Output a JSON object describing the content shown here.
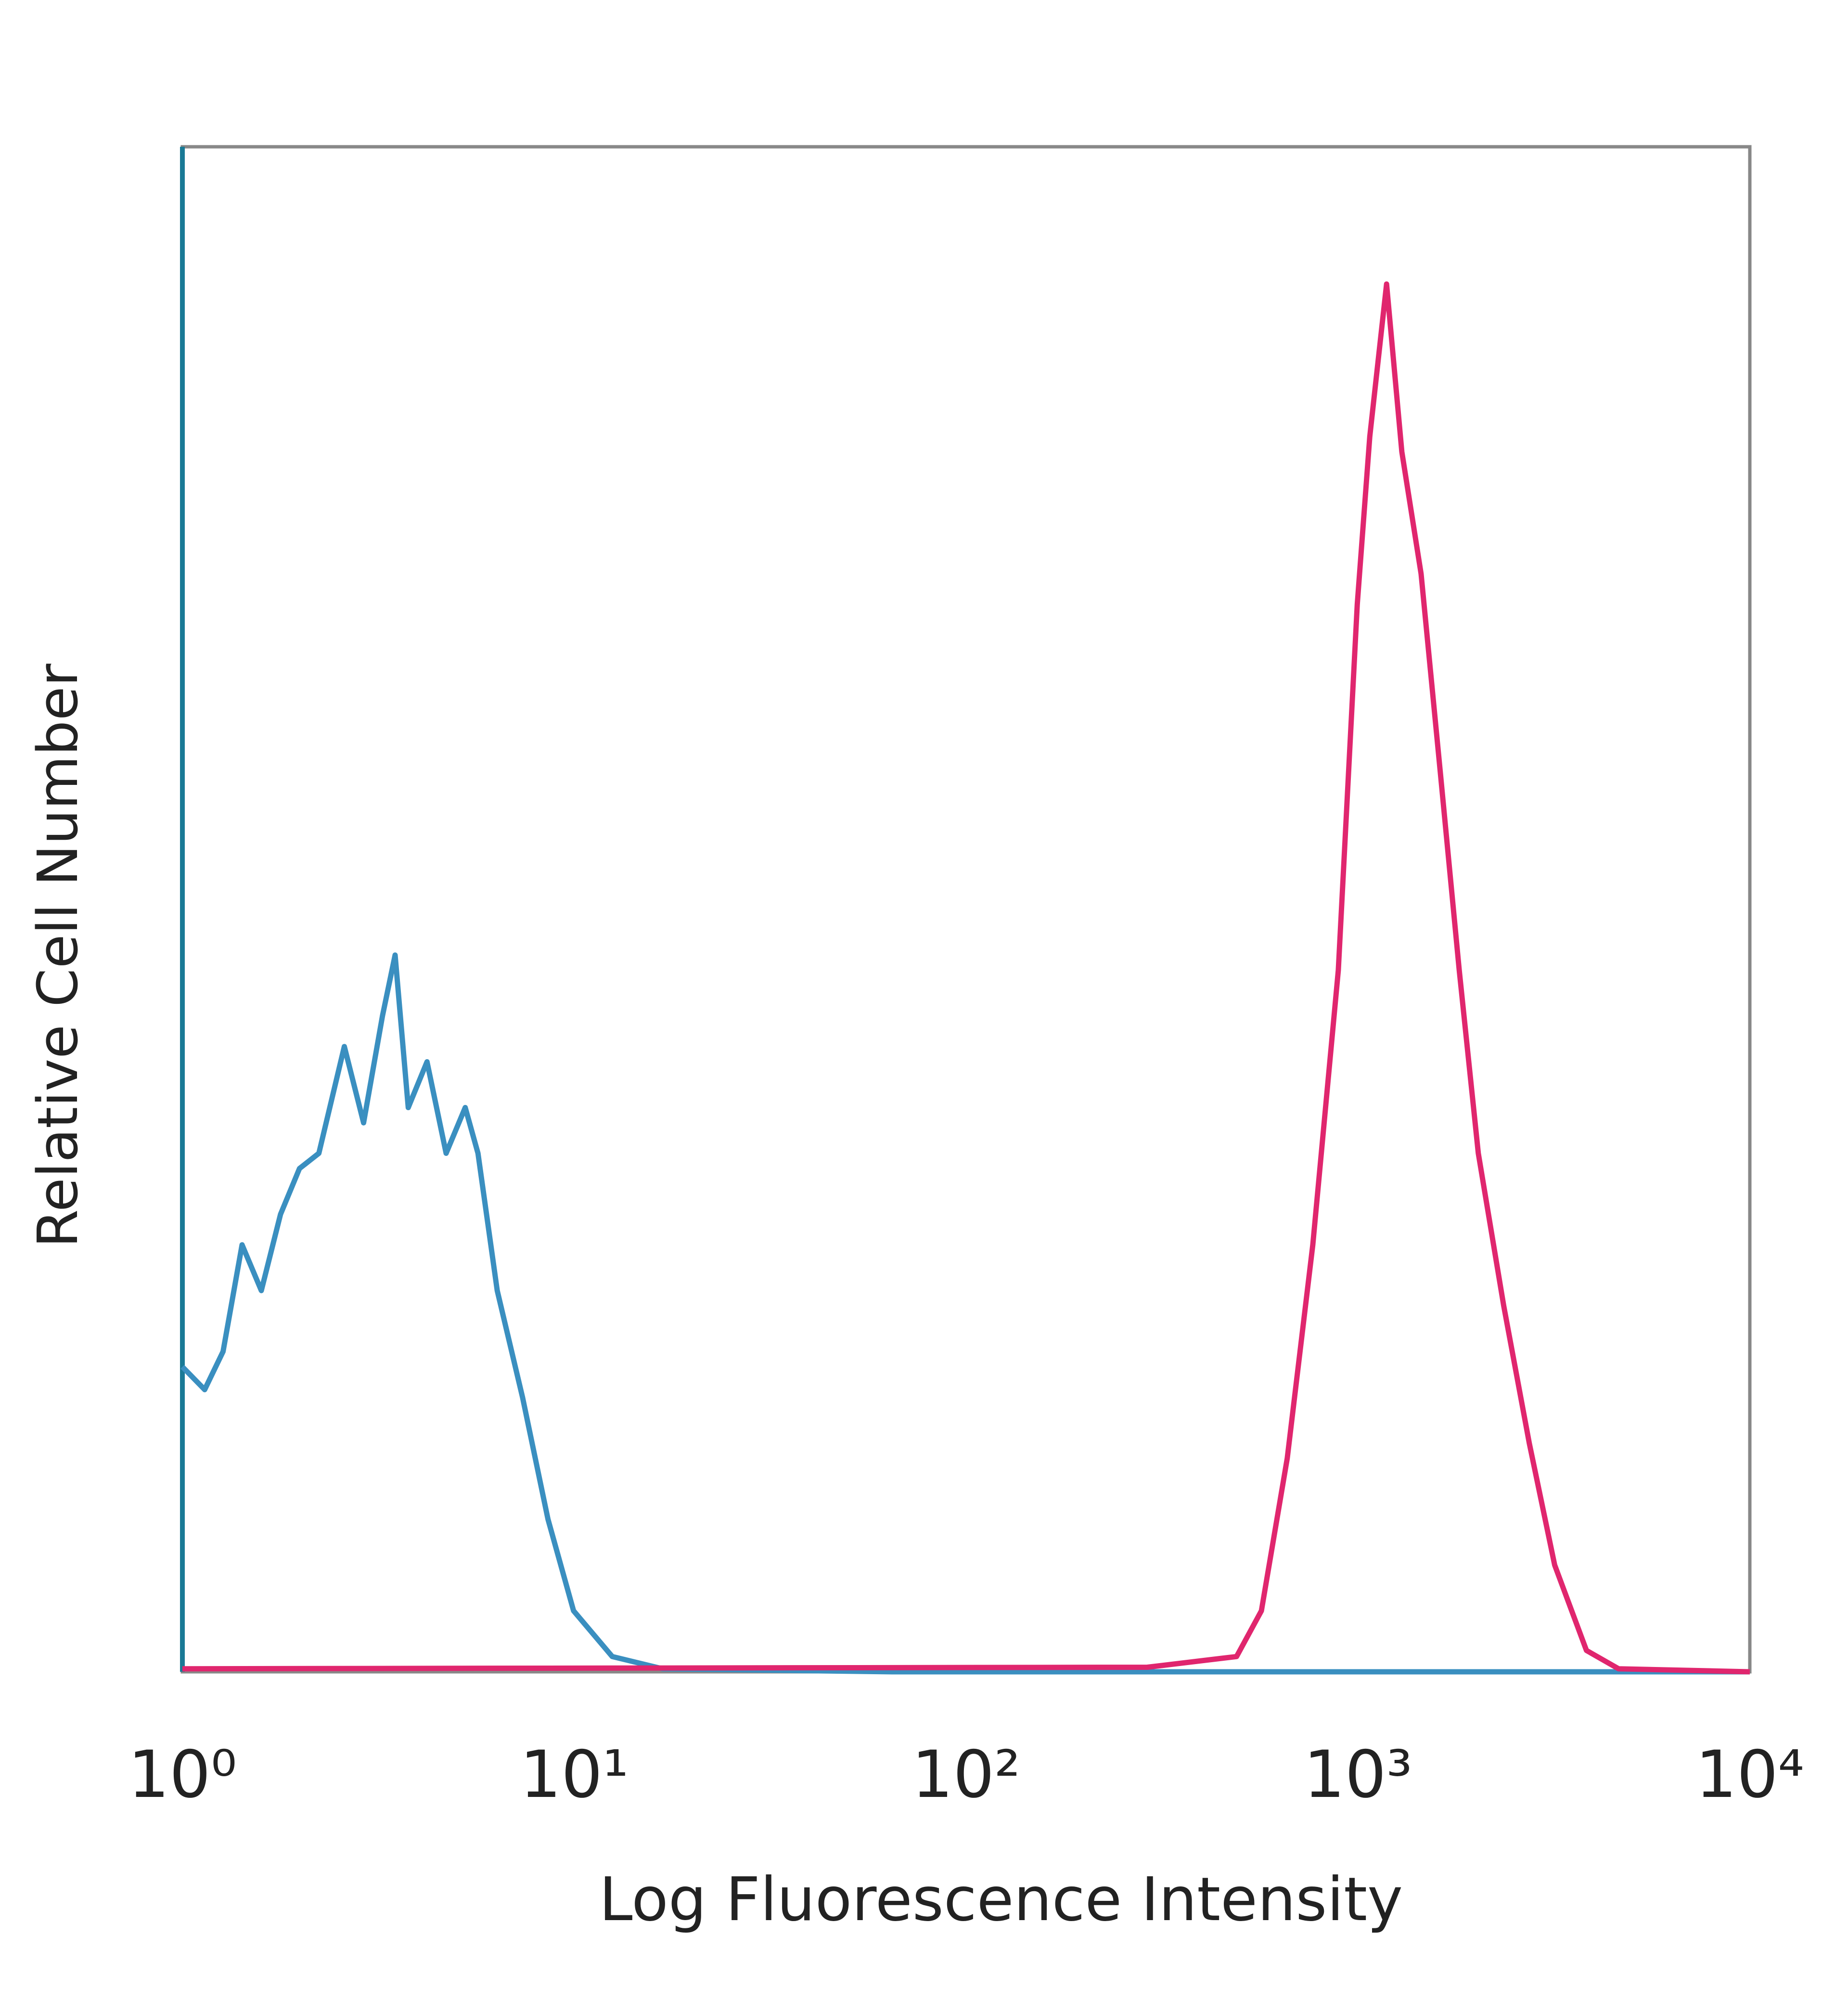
{
  "chart_data": {
    "type": "line",
    "xlabel": "Log Fluorescence Intensity",
    "ylabel": "Relative Cell Number",
    "xscale": "log",
    "xlim": [
      1,
      10000
    ],
    "ylim": [
      0,
      100
    ],
    "xticks": [
      {
        "value": 1,
        "label": "10⁰"
      },
      {
        "value": 10,
        "label": "10¹"
      },
      {
        "value": 100,
        "label": "10²"
      },
      {
        "value": 1000,
        "label": "10³"
      },
      {
        "value": 10000,
        "label": "10⁴"
      }
    ],
    "series": [
      {
        "color": "#3a8fc0",
        "x": [
          1,
          1.14,
          1.27,
          1.42,
          1.59,
          1.78,
          1.99,
          2.23,
          2.59,
          2.9,
          3.24,
          3.49,
          3.77,
          4.21,
          4.71,
          5.27,
          5.68,
          6.36,
          7.38,
          8.57,
          9.96,
          12.5,
          16.8,
          64.8,
          10000
        ],
        "values": [
          20,
          18.5,
          21,
          28,
          25,
          30,
          33,
          34,
          41,
          36,
          43,
          47,
          37,
          40,
          34,
          37,
          34,
          25,
          18,
          10,
          4,
          1,
          0.2,
          0,
          0
        ]
      },
      {
        "color": "#e0266e",
        "x": [
          1,
          290,
          490,
          567,
          660,
          767,
          891,
          996,
          1072,
          1183,
          1294,
          1449,
          1622,
          1813,
          2028,
          2355,
          2736,
          3177,
          3829,
          4624,
          10000
        ],
        "values": [
          0.2,
          0.3,
          1,
          4,
          14,
          28,
          46,
          70,
          81,
          91,
          80,
          72,
          59,
          46,
          34,
          24,
          15,
          7,
          1.4,
          0.2,
          0
        ]
      }
    ]
  }
}
